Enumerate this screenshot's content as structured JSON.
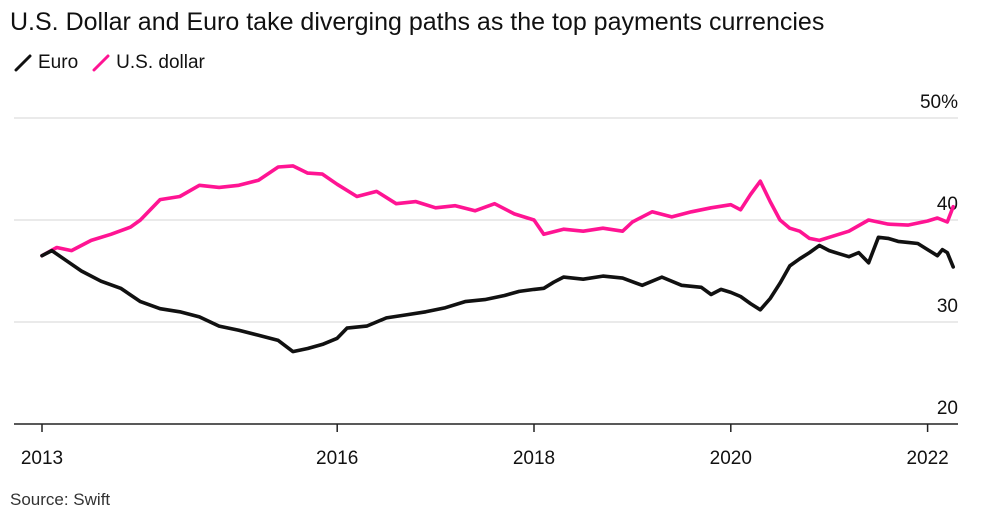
{
  "header": {
    "title": "U.S. Dollar and Euro take diverging paths as the top payments currencies"
  },
  "legend": {
    "items": [
      {
        "label": "Euro",
        "color": "#111111"
      },
      {
        "label": "U.S. dollar",
        "color": "#ff1493"
      }
    ]
  },
  "footer": {
    "source": "Source: Swift"
  },
  "chart_data": {
    "type": "line",
    "title": "U.S. Dollar and Euro take diverging paths as the top payments currencies",
    "xlabel": "",
    "ylabel": "",
    "xlim": [
      2013.0,
      2022.6
    ],
    "ylim": [
      20,
      50
    ],
    "x_ticks": [
      {
        "value": 2013,
        "label": "2013"
      },
      {
        "value": 2016,
        "label": "2016"
      },
      {
        "value": 2018,
        "label": "2018"
      },
      {
        "value": 2020,
        "label": "2020"
      },
      {
        "value": 2022,
        "label": "2022"
      }
    ],
    "y_ticks": [
      {
        "value": 50,
        "label": "50%"
      },
      {
        "value": 40,
        "label": "40"
      },
      {
        "value": 30,
        "label": "30"
      },
      {
        "value": 20,
        "label": "20"
      }
    ],
    "grid": true,
    "legend_position": "top-left",
    "series": [
      {
        "name": "Euro",
        "color": "#111111",
        "points": [
          [
            2013.0,
            36.5
          ],
          [
            2013.1,
            37.0
          ],
          [
            2013.25,
            36.0
          ],
          [
            2013.4,
            35.0
          ],
          [
            2013.6,
            34.0
          ],
          [
            2013.8,
            33.3
          ],
          [
            2014.0,
            32.0
          ],
          [
            2014.2,
            31.3
          ],
          [
            2014.4,
            31.0
          ],
          [
            2014.6,
            30.5
          ],
          [
            2014.8,
            29.6
          ],
          [
            2015.0,
            29.2
          ],
          [
            2015.2,
            28.7
          ],
          [
            2015.4,
            28.2
          ],
          [
            2015.55,
            27.1
          ],
          [
            2015.7,
            27.4
          ],
          [
            2015.85,
            27.8
          ],
          [
            2016.0,
            28.4
          ],
          [
            2016.1,
            29.4
          ],
          [
            2016.3,
            29.6
          ],
          [
            2016.5,
            30.4
          ],
          [
            2016.7,
            30.7
          ],
          [
            2016.9,
            31.0
          ],
          [
            2017.1,
            31.4
          ],
          [
            2017.3,
            32.0
          ],
          [
            2017.5,
            32.2
          ],
          [
            2017.7,
            32.6
          ],
          [
            2017.85,
            33.0
          ],
          [
            2018.0,
            33.2
          ],
          [
            2018.1,
            33.3
          ],
          [
            2018.2,
            33.9
          ],
          [
            2018.3,
            34.4
          ],
          [
            2018.5,
            34.2
          ],
          [
            2018.7,
            34.5
          ],
          [
            2018.9,
            34.3
          ],
          [
            2019.1,
            33.6
          ],
          [
            2019.3,
            34.4
          ],
          [
            2019.5,
            33.6
          ],
          [
            2019.7,
            33.4
          ],
          [
            2019.8,
            32.7
          ],
          [
            2019.9,
            33.2
          ],
          [
            2020.0,
            32.9
          ],
          [
            2020.1,
            32.5
          ],
          [
            2020.2,
            31.8
          ],
          [
            2020.3,
            31.2
          ],
          [
            2020.4,
            32.3
          ],
          [
            2020.5,
            33.8
          ],
          [
            2020.6,
            35.5
          ],
          [
            2020.7,
            36.2
          ],
          [
            2020.8,
            36.8
          ],
          [
            2020.9,
            37.5
          ],
          [
            2021.0,
            37.0
          ],
          [
            2021.1,
            36.7
          ],
          [
            2021.2,
            36.4
          ],
          [
            2021.3,
            36.8
          ],
          [
            2021.4,
            35.8
          ],
          [
            2021.5,
            38.3
          ],
          [
            2021.6,
            38.2
          ],
          [
            2021.7,
            37.9
          ],
          [
            2021.8,
            37.8
          ],
          [
            2021.9,
            37.7
          ],
          [
            2022.0,
            37.1
          ],
          [
            2022.1,
            36.5
          ],
          [
            2022.15,
            37.1
          ],
          [
            2022.2,
            36.8
          ],
          [
            2022.26,
            35.4
          ]
        ]
      },
      {
        "name": "U.S. dollar",
        "color": "#ff1493",
        "points": [
          [
            2013.0,
            36.5
          ],
          [
            2013.15,
            37.3
          ],
          [
            2013.3,
            37.0
          ],
          [
            2013.5,
            38.0
          ],
          [
            2013.7,
            38.6
          ],
          [
            2013.9,
            39.3
          ],
          [
            2014.0,
            40.0
          ],
          [
            2014.2,
            42.0
          ],
          [
            2014.4,
            42.3
          ],
          [
            2014.6,
            43.4
          ],
          [
            2014.8,
            43.2
          ],
          [
            2015.0,
            43.4
          ],
          [
            2015.2,
            43.9
          ],
          [
            2015.4,
            45.2
          ],
          [
            2015.55,
            45.3
          ],
          [
            2015.7,
            44.6
          ],
          [
            2015.85,
            44.5
          ],
          [
            2016.0,
            43.5
          ],
          [
            2016.2,
            42.3
          ],
          [
            2016.4,
            42.8
          ],
          [
            2016.6,
            41.6
          ],
          [
            2016.8,
            41.8
          ],
          [
            2017.0,
            41.2
          ],
          [
            2017.2,
            41.4
          ],
          [
            2017.4,
            40.9
          ],
          [
            2017.6,
            41.6
          ],
          [
            2017.8,
            40.6
          ],
          [
            2018.0,
            40.0
          ],
          [
            2018.1,
            38.6
          ],
          [
            2018.3,
            39.1
          ],
          [
            2018.5,
            38.9
          ],
          [
            2018.7,
            39.2
          ],
          [
            2018.9,
            38.9
          ],
          [
            2019.0,
            39.8
          ],
          [
            2019.2,
            40.8
          ],
          [
            2019.4,
            40.3
          ],
          [
            2019.6,
            40.8
          ],
          [
            2019.8,
            41.2
          ],
          [
            2020.0,
            41.5
          ],
          [
            2020.1,
            41.0
          ],
          [
            2020.2,
            42.5
          ],
          [
            2020.3,
            43.8
          ],
          [
            2020.4,
            41.8
          ],
          [
            2020.5,
            40.0
          ],
          [
            2020.6,
            39.2
          ],
          [
            2020.7,
            38.9
          ],
          [
            2020.8,
            38.2
          ],
          [
            2020.9,
            38.0
          ],
          [
            2021.0,
            38.3
          ],
          [
            2021.2,
            38.9
          ],
          [
            2021.4,
            40.0
          ],
          [
            2021.6,
            39.6
          ],
          [
            2021.8,
            39.5
          ],
          [
            2022.0,
            39.9
          ],
          [
            2022.1,
            40.2
          ],
          [
            2022.2,
            39.8
          ],
          [
            2022.26,
            41.3
          ]
        ]
      }
    ]
  }
}
